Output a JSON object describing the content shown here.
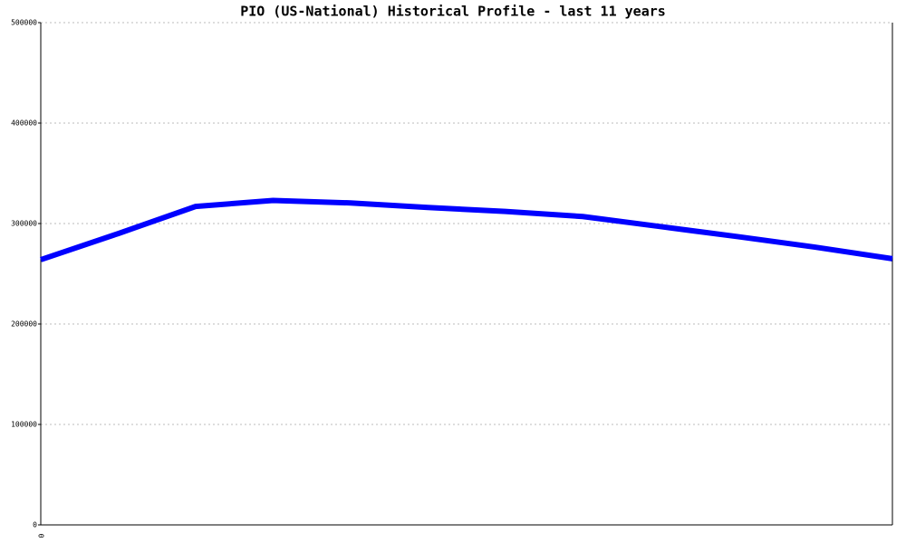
{
  "chart_data": {
    "type": "line",
    "title": "PIO (US-National) Historical Profile - last 11 years",
    "categories": [
      "0",
      null,
      null,
      null,
      null,
      null,
      null,
      null,
      null,
      null,
      null,
      null
    ],
    "series": [
      {
        "color": "#0000ff",
        "values": [
          264000,
          290000,
          317000,
          323000,
          320500,
          316000,
          312000,
          307000,
          297000,
          287000,
          276500,
          265000
        ]
      }
    ],
    "ylim": [
      0,
      500000
    ],
    "yticks": [
      0,
      100000,
      200000,
      300000,
      400000,
      500000
    ],
    "grid": true
  }
}
